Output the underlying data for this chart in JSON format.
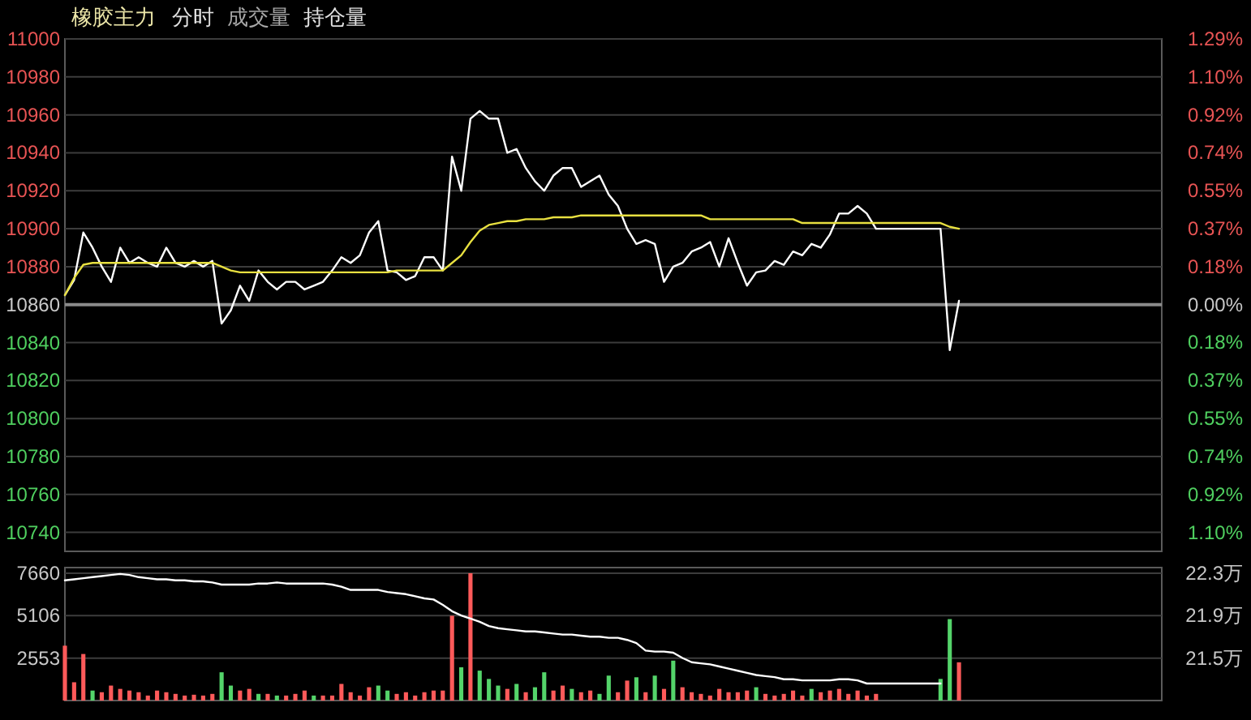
{
  "chart_data": [
    {
      "type": "line",
      "title": "橡胶主力",
      "annotations": [
        "分时",
        "成交量",
        "持仓量"
      ],
      "categories": [
        null,
        null,
        null,
        null,
        null,
        null,
        null,
        null,
        null,
        null,
        null,
        null,
        null,
        null,
        null,
        null,
        null,
        null,
        null,
        null,
        null,
        null,
        null,
        null,
        null,
        null,
        null,
        null,
        null,
        null,
        null,
        null,
        null,
        null,
        null,
        null,
        null,
        null,
        null,
        null,
        null,
        null,
        null,
        null,
        null,
        null,
        null,
        null,
        null,
        null,
        null,
        null,
        null,
        null,
        null,
        null,
        null,
        null,
        null,
        null,
        null,
        null,
        null,
        null,
        null,
        null,
        null,
        null,
        null,
        null,
        null,
        null,
        null,
        null,
        null,
        null,
        null,
        null,
        null,
        null,
        null,
        null,
        null,
        null,
        null,
        null,
        null,
        null,
        null,
        null,
        null,
        null,
        null,
        null,
        null,
        null,
        null,
        null,
        null,
        null,
        null,
        null,
        null,
        null,
        null,
        null,
        null,
        null,
        null,
        null,
        null,
        null,
        null,
        null,
        null,
        null,
        null,
        null,
        null,
        null
      ],
      "series": [
        {
          "color": "#ffffff",
          "values": [
            10865,
            10873,
            10898,
            10890,
            10880,
            10872,
            10890,
            10882,
            10885,
            10882,
            10880,
            10890,
            10882,
            10880,
            10883,
            10880,
            10883,
            10850,
            10857,
            10870,
            10862,
            10878,
            10872,
            10868,
            10872,
            10872,
            10868,
            10870,
            10872,
            10878,
            10885,
            10882,
            10886,
            10898,
            10904,
            10878,
            10877,
            10873,
            10875,
            10885,
            10885,
            10878,
            10938,
            10920,
            10958,
            10962,
            10958,
            10958,
            10940,
            10942,
            10932,
            10925,
            10920,
            10928,
            10932,
            10932,
            10922,
            10925,
            10928,
            10918,
            10912,
            10900,
            10892,
            10894,
            10892,
            10872,
            10880,
            10882,
            10888,
            10890,
            10893,
            10880,
            10895,
            10882,
            10870,
            10877,
            10878,
            10883,
            10881,
            10888,
            10886,
            10892,
            10890,
            10897,
            10908,
            10908,
            10912,
            10908,
            10900,
            10900,
            10900,
            10900,
            10900,
            10900,
            10900,
            10900,
            10836,
            10862,
            null,
            null,
            null,
            null,
            null,
            null,
            null,
            null,
            null,
            null,
            null,
            null,
            null,
            null,
            null,
            null,
            null,
            null,
            null,
            null,
            null,
            null
          ]
        },
        {
          "color": "#e8e040",
          "values": [
            10865,
            10874,
            10881,
            10882,
            10882,
            10882,
            10882,
            10882,
            10882,
            10882,
            10882,
            10882,
            10882,
            10882,
            10882,
            10882,
            10882,
            10880,
            10878,
            10877,
            10877,
            10877,
            10877,
            10877,
            10877,
            10877,
            10877,
            10877,
            10877,
            10877,
            10877,
            10877,
            10877,
            10877,
            10877,
            10877,
            10878,
            10878,
            10878,
            10878,
            10878,
            10878,
            10882,
            10886,
            10893,
            10899,
            10902,
            10903,
            10904,
            10904,
            10905,
            10905,
            10905,
            10906,
            10906,
            10906,
            10907,
            10907,
            10907,
            10907,
            10907,
            10907,
            10907,
            10907,
            10907,
            10907,
            10907,
            10907,
            10907,
            10907,
            10905,
            10905,
            10905,
            10905,
            10905,
            10905,
            10905,
            10905,
            10905,
            10905,
            10903,
            10903,
            10903,
            10903,
            10903,
            10903,
            10903,
            10903,
            10903,
            10903,
            10903,
            10903,
            10903,
            10903,
            10903,
            10903,
            10901,
            10900,
            null,
            null,
            null,
            null,
            null,
            null,
            null,
            null,
            null,
            null,
            null,
            null,
            null,
            null,
            null,
            null,
            null,
            null,
            null,
            null,
            null,
            null
          ]
        }
      ],
      "ylim": [
        10730,
        11000
      ],
      "yticks": [
        10740,
        10760,
        10780,
        10800,
        10820,
        10840,
        10860,
        10880,
        10900,
        10920,
        10940,
        10960,
        10980,
        11000
      ],
      "y2lim": [
        -1.197,
        1.289
      ],
      "y2ticks": [
        {
          "value": -1.105,
          "label": "1.10%"
        },
        {
          "value": -0.921,
          "label": "0.92%"
        },
        {
          "value": -0.737,
          "label": "0.74%"
        },
        {
          "value": -0.552,
          "label": "0.55%"
        },
        {
          "value": -0.368,
          "label": "0.37%"
        },
        {
          "value": -0.184,
          "label": "0.18%"
        },
        {
          "value": 0,
          "label": "0.00%"
        },
        {
          "value": 0.184,
          "label": "0.18%"
        },
        {
          "value": 0.368,
          "label": "0.37%"
        },
        {
          "value": 0.552,
          "label": "0.55%"
        },
        {
          "value": 0.737,
          "label": "0.74%"
        },
        {
          "value": 0.921,
          "label": "0.92%"
        },
        {
          "value": 1.105,
          "label": "1.10%"
        },
        {
          "value": 1.289,
          "label": "1.29%"
        }
      ],
      "ref_lines": [
        {
          "axis": "y",
          "value": 10860,
          "color": "#8a8a8a"
        }
      ],
      "grid": "y"
    },
    {
      "type": "bar",
      "categories": [
        null,
        null,
        null,
        null,
        null,
        null,
        null,
        null,
        null,
        null,
        null,
        null,
        null,
        null,
        null,
        null,
        null,
        null,
        null,
        null,
        null,
        null,
        null,
        null,
        null,
        null,
        null,
        null,
        null,
        null,
        null,
        null,
        null,
        null,
        null,
        null,
        null,
        null,
        null,
        null,
        null,
        null,
        null,
        null,
        null,
        null,
        null,
        null,
        null,
        null,
        null,
        null,
        null,
        null,
        null,
        null,
        null,
        null,
        null,
        null,
        null,
        null,
        null,
        null,
        null,
        null,
        null,
        null,
        null,
        null,
        null,
        null,
        null,
        null,
        null,
        null,
        null,
        null,
        null,
        null,
        null,
        null,
        null,
        null,
        null,
        null,
        null,
        null,
        null,
        null,
        null,
        null,
        null,
        null,
        null,
        null,
        null,
        null,
        null,
        null,
        null,
        null,
        null,
        null,
        null,
        null,
        null,
        null,
        null,
        null,
        null,
        null,
        null,
        null,
        null,
        null,
        null,
        null,
        null,
        null
      ],
      "series": [
        {
          "values": [
            3300,
            1100,
            2800,
            600,
            500,
            900,
            700,
            600,
            500,
            300,
            600,
            500,
            400,
            300,
            350,
            300,
            400,
            1700,
            900,
            600,
            700,
            400,
            400,
            300,
            300,
            400,
            600,
            300,
            300,
            300,
            1000,
            500,
            300,
            800,
            900,
            600,
            400,
            500,
            300,
            500,
            600,
            600,
            5100,
            2000,
            7660,
            1800,
            1300,
            900,
            700,
            1000,
            500,
            800,
            1700,
            600,
            900,
            700,
            500,
            600,
            400,
            1500,
            500,
            1200,
            1400,
            500,
            1500,
            700,
            2400,
            800,
            500,
            400,
            300,
            700,
            500,
            500,
            600,
            800,
            400,
            300,
            400,
            600,
            300,
            700,
            500,
            600,
            700,
            400,
            600,
            300,
            400,
            null,
            null,
            null,
            null,
            null,
            null,
            1300,
            4900,
            2300,
            null,
            null,
            null,
            null,
            null,
            null,
            null,
            null,
            null,
            null,
            null,
            null,
            null,
            null,
            null,
            null,
            null,
            null,
            null,
            null,
            null,
            null
          ],
          "colors": [
            "#ff5a5a",
            "#ff5a5a",
            "#ff5a5a",
            "#54d46a",
            "#ff5a5a",
            "#ff5a5a",
            "#ff5a5a",
            "#ff5a5a",
            "#ff5a5a",
            "#ff5a5a",
            "#ff5a5a",
            "#ff5a5a",
            "#ff5a5a",
            "#ff5a5a",
            "#ff5a5a",
            "#ff5a5a",
            "#ff5a5a",
            "#54d46a",
            "#54d46a",
            "#ff5a5a",
            "#ff5a5a",
            "#54d46a",
            "#ff5a5a",
            "#54d46a",
            "#ff5a5a",
            "#ff5a5a",
            "#ff5a5a",
            "#54d46a",
            "#ff5a5a",
            "#ff5a5a",
            "#ff5a5a",
            "#ff5a5a",
            "#ff5a5a",
            "#ff5a5a",
            "#54d46a",
            "#54d46a",
            "#ff5a5a",
            "#ff5a5a",
            "#ff5a5a",
            "#ff5a5a",
            "#ff5a5a",
            "#ff5a5a",
            "#ff5a5a",
            "#54d46a",
            "#ff5a5a",
            "#54d46a",
            "#54d46a",
            "#54d46a",
            "#ff5a5a",
            "#54d46a",
            "#ff5a5a",
            "#54d46a",
            "#54d46a",
            "#ff5a5a",
            "#ff5a5a",
            "#54d46a",
            "#ff5a5a",
            "#ff5a5a",
            "#54d46a",
            "#54d46a",
            "#ff5a5a",
            "#ff5a5a",
            "#54d46a",
            "#ff5a5a",
            "#54d46a",
            "#ff5a5a",
            "#54d46a",
            "#ff5a5a",
            "#ff5a5a",
            "#ff5a5a",
            "#ff5a5a",
            "#ff5a5a",
            "#ff5a5a",
            "#ff5a5a",
            "#ff5a5a",
            "#54d46a",
            "#ff5a5a",
            "#ff5a5a",
            "#ff5a5a",
            "#ff5a5a",
            "#ff5a5a",
            "#54d46a",
            "#ff5a5a",
            "#ff5a5a",
            "#ff5a5a",
            "#ff5a5a",
            "#ff5a5a",
            "#ff5a5a",
            "#ff5a5a",
            null,
            null,
            null,
            null,
            null,
            null,
            "#54d46a",
            "#54d46a",
            "#ff5a5a",
            null,
            null,
            null,
            null,
            null,
            null,
            null,
            null,
            null,
            null,
            null,
            null,
            null,
            null,
            null,
            null,
            null,
            null,
            null,
            null,
            null,
            null
          ]
        },
        {
          "type": "line",
          "axis": "y2",
          "color": "#ffffff",
          "values": [
            22.23,
            22.24,
            22.25,
            22.26,
            22.27,
            22.28,
            22.29,
            22.28,
            22.26,
            22.25,
            22.24,
            22.24,
            22.23,
            22.23,
            22.22,
            22.22,
            22.21,
            22.19,
            22.19,
            22.19,
            22.19,
            22.2,
            22.2,
            22.21,
            22.2,
            22.2,
            22.2,
            22.2,
            22.2,
            22.19,
            22.17,
            22.14,
            22.14,
            22.14,
            22.14,
            22.12,
            22.11,
            22.1,
            22.08,
            22.06,
            22.05,
            22.0,
            21.94,
            21.9,
            21.87,
            21.84,
            21.8,
            21.78,
            21.77,
            21.76,
            21.75,
            21.75,
            21.74,
            21.73,
            21.72,
            21.72,
            21.71,
            21.7,
            21.7,
            21.69,
            21.69,
            21.67,
            21.64,
            21.57,
            21.56,
            21.56,
            21.55,
            21.5,
            21.46,
            21.45,
            21.44,
            21.42,
            21.4,
            21.38,
            21.36,
            21.34,
            21.33,
            21.32,
            21.3,
            21.3,
            21.29,
            21.29,
            21.29,
            21.29,
            21.3,
            21.3,
            21.29,
            21.26,
            21.26,
            21.26,
            21.26,
            21.26,
            21.26,
            21.26,
            21.26,
            21.26,
            null,
            null,
            null,
            null,
            null,
            null,
            null,
            null,
            null,
            null,
            null,
            null,
            null,
            null,
            null,
            null,
            null,
            null,
            null,
            null,
            null,
            null,
            null,
            null
          ]
        }
      ],
      "ylim": [
        0,
        8000
      ],
      "yticks": [
        2553,
        5106,
        7660
      ],
      "y2lim": [
        21.1,
        22.35
      ],
      "y2ticks": [
        {
          "value": 21.5,
          "label": "21.5万"
        },
        {
          "value": 21.9,
          "label": "21.9万"
        },
        {
          "value": 22.3,
          "label": "22.3万"
        }
      ],
      "grid": "y"
    }
  ]
}
